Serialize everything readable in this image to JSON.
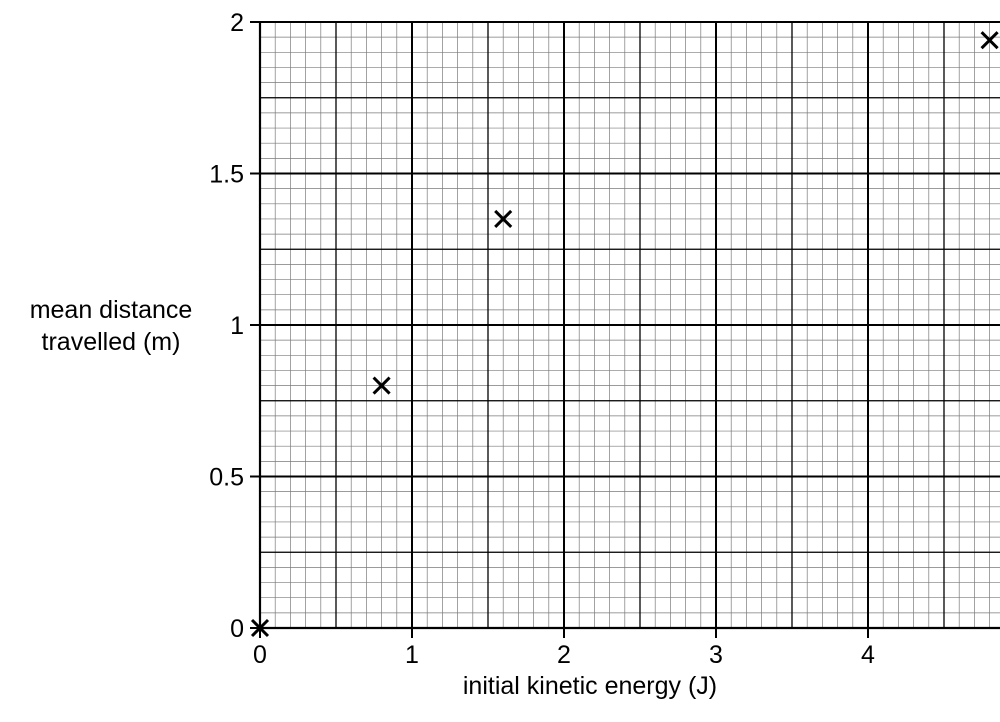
{
  "chart_data": {
    "type": "scatter",
    "title": "",
    "xlabel": "initial kinetic energy (J)",
    "ylabel_lines": [
      "mean distance",
      "travelled (m)"
    ],
    "xlim": [
      0,
      4.9
    ],
    "ylim": [
      0,
      2
    ],
    "x_ticks": [
      0,
      1,
      2,
      3,
      4
    ],
    "x_tick_labels": [
      "0",
      "1",
      "2",
      "3",
      "4"
    ],
    "y_ticks": [
      0,
      0.5,
      1,
      1.5,
      2
    ],
    "y_tick_labels": [
      "0",
      "0.5",
      "1",
      "1.5",
      "2"
    ],
    "grid": true,
    "marker": "x",
    "points": [
      {
        "x": 0,
        "y": 0
      },
      {
        "x": 0.8,
        "y": 0.8
      },
      {
        "x": 1.6,
        "y": 1.35
      },
      {
        "x": 4.8,
        "y": 1.94
      }
    ],
    "colors": {
      "ink": "#000000",
      "grid": "#000000",
      "background": "#ffffff"
    }
  }
}
